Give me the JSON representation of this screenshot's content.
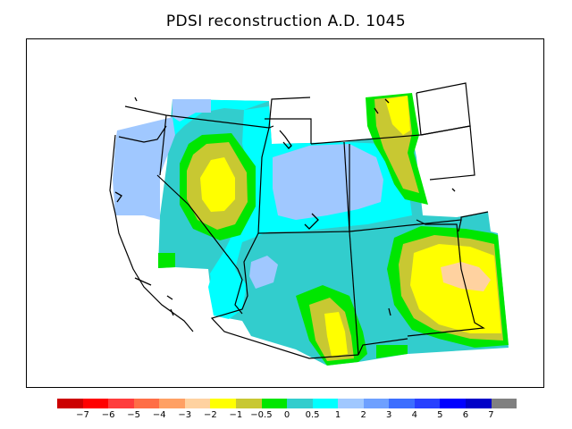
{
  "title": "PDSI reconstruction A.D. 1045",
  "legend": {
    "colors": [
      "#cc0000",
      "#ff0000",
      "#ff3c3c",
      "#ff6e46",
      "#ffa064",
      "#ffd2a0",
      "#ffff00",
      "#c8c832",
      "#00e600",
      "#32cdcd",
      "#00ffff",
      "#a0c8ff",
      "#6ea0ff",
      "#3c6eff",
      "#2840ff",
      "#0000ff",
      "#0000c8",
      "#808080"
    ],
    "ticks": [
      "−7",
      "−6",
      "−5",
      "−4",
      "−3",
      "−2",
      "−1",
      "−0.5",
      "0",
      "0.5",
      "1",
      "2",
      "3",
      "4",
      "5",
      "6",
      "7"
    ]
  },
  "map_colors": {
    "near_normal": "#32cdcd",
    "wet_1": "#00ffff",
    "wet_2": "#a0c8ff",
    "dry_0": "#00e600",
    "dry_05": "#c8c832",
    "dry_1": "#ffff00",
    "dry_2": "#ffd2a0"
  }
}
